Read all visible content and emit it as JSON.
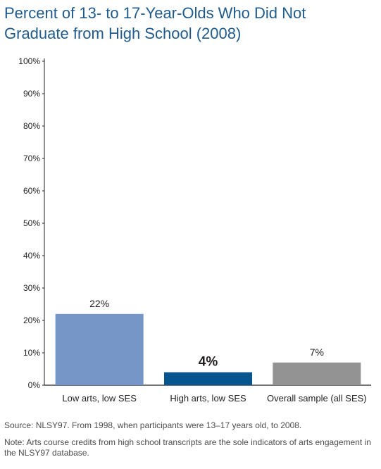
{
  "title": "Percent of 13- to 17-Year-Olds Who Did Not Graduate from High School (2008)",
  "footnotes": {
    "source": "Source: NLSY97. From 1998, when participants were 13–17 years old, to 2008.",
    "note": "Note: Arts course credits from high school transcripts are the sole indicators of arts engagement in the NLSY97 database."
  },
  "chart_data": {
    "type": "bar",
    "title": "Percent of 13- to 17-Year-Olds Who Did Not Graduate from High School (2008)",
    "xlabel": "",
    "ylabel": "",
    "ylim": [
      0,
      100
    ],
    "yticks": [
      0,
      10,
      20,
      30,
      40,
      50,
      60,
      70,
      80,
      90,
      100
    ],
    "ytick_labels": [
      "0%",
      "10%",
      "20%",
      "30%",
      "40%",
      "50%",
      "60%",
      "70%",
      "80%",
      "90%",
      "100%"
    ],
    "categories": [
      "Low arts, low SES",
      "High arts, low SES",
      "Overall sample (all SES)"
    ],
    "values": [
      22,
      4,
      7
    ],
    "value_labels": [
      "22%",
      "4%",
      "7%"
    ],
    "bar_colors": [
      "#7596c6",
      "#07558f",
      "#939393"
    ],
    "emphasized_label": "4%",
    "grid": false,
    "legend": "none"
  }
}
